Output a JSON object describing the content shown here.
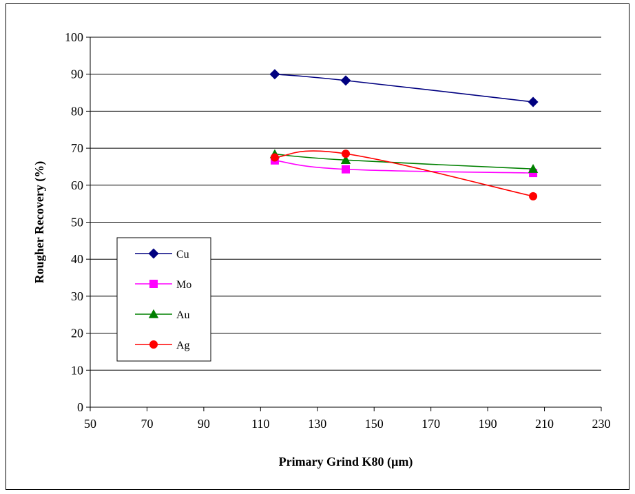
{
  "chart_data": {
    "type": "line",
    "xlabel": "Primary Grind K80 (µm)",
    "ylabel": "Rougher Recovery (%)",
    "xlim": [
      50,
      230
    ],
    "ylim": [
      0,
      100
    ],
    "x_ticks": [
      50,
      70,
      90,
      110,
      130,
      150,
      170,
      190,
      210,
      230
    ],
    "y_ticks": [
      0,
      10,
      20,
      30,
      40,
      50,
      60,
      70,
      80,
      90,
      100
    ],
    "grid": "horizontal",
    "legend_position": "left",
    "series": [
      {
        "name": "Cu",
        "color": "#000080",
        "marker": "diamond",
        "x": [
          115,
          140,
          206
        ],
        "y": [
          90,
          88.3,
          82.5
        ]
      },
      {
        "name": "Mo",
        "color": "#ff00ff",
        "marker": "square",
        "x": [
          115,
          140,
          206
        ],
        "y": [
          66.7,
          64.3,
          63.3
        ]
      },
      {
        "name": "Au",
        "color": "#008000",
        "marker": "triangle",
        "x": [
          115,
          140,
          206
        ],
        "y": [
          68.4,
          66.8,
          64.4
        ]
      },
      {
        "name": "Ag",
        "color": "#ff0000",
        "marker": "circle",
        "x": [
          115,
          140,
          206
        ],
        "y": [
          67.5,
          68.5,
          57
        ]
      }
    ]
  }
}
